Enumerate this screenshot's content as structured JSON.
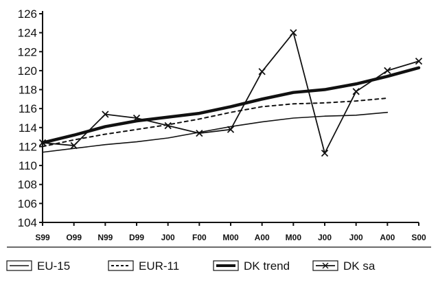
{
  "chart_data": {
    "type": "line",
    "categories": [
      "S99",
      "O99",
      "N99",
      "D99",
      "J00",
      "F00",
      "M00",
      "A00",
      "M00",
      "J00",
      "J00",
      "A00",
      "S00"
    ],
    "ylim": [
      104,
      126
    ],
    "yticks": [
      104,
      106,
      108,
      110,
      112,
      114,
      116,
      118,
      120,
      122,
      124,
      126
    ],
    "grid": false,
    "legend_position": "bottom",
    "series": [
      {
        "name": "EU-15",
        "style": "solid thin",
        "values": [
          111.4,
          111.8,
          112.2,
          112.5,
          112.9,
          113.5,
          114.1,
          114.6,
          115.0,
          115.2,
          115.3,
          115.6,
          null
        ]
      },
      {
        "name": "EUR-11",
        "style": "dashed",
        "values": [
          112.0,
          112.7,
          113.3,
          113.8,
          114.3,
          114.9,
          115.6,
          116.2,
          116.5,
          116.6,
          116.8,
          117.1,
          null
        ]
      },
      {
        "name": "DK trend",
        "style": "solid thick",
        "values": [
          112.4,
          113.2,
          114.1,
          114.7,
          115.1,
          115.5,
          116.2,
          117.0,
          117.7,
          118.0,
          118.6,
          119.4,
          120.3
        ]
      },
      {
        "name": "DK sa",
        "style": "line with x markers",
        "values": [
          112.4,
          112.1,
          115.4,
          115.0,
          114.2,
          113.4,
          113.8,
          119.9,
          124.0,
          111.3,
          117.8,
          120.0,
          121.0
        ]
      }
    ]
  },
  "colors": {
    "line": "#111111",
    "background": "#ffffff"
  }
}
